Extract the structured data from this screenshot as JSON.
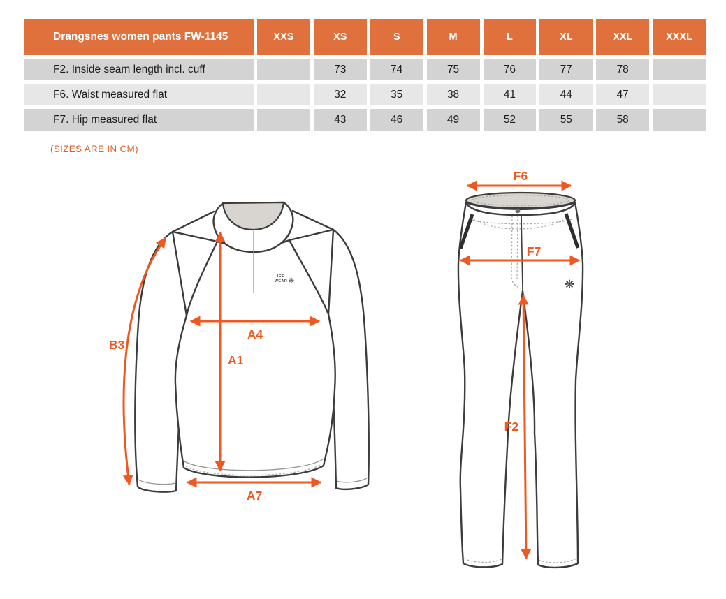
{
  "table": {
    "header": {
      "product": "Drangsnes women pants FW-1145",
      "sizes": [
        "XXS",
        "XS",
        "S",
        "M",
        "L",
        "XL",
        "XXL",
        "XXXL"
      ]
    },
    "rows": [
      {
        "label": "F2. Inside seam length incl. cuff",
        "values": [
          "",
          "73",
          "74",
          "75",
          "76",
          "77",
          "78",
          ""
        ]
      },
      {
        "label": "F6. Waist measured flat",
        "values": [
          "",
          "32",
          "35",
          "38",
          "41",
          "44",
          "47",
          ""
        ]
      },
      {
        "label": "F7. Hip measured flat",
        "values": [
          "",
          "43",
          "46",
          "49",
          "52",
          "55",
          "58",
          ""
        ]
      }
    ]
  },
  "note": "(SIZES ARE IN CM)",
  "diagrams": {
    "sweater": {
      "labels": {
        "b3": "B3",
        "a4": "A4",
        "a1": "A1",
        "a7": "A7"
      },
      "logo": {
        "line1": "ICE",
        "line2": "WEAR",
        "mark": "❋"
      }
    },
    "pants": {
      "labels": {
        "f6": "F6",
        "f7": "F7",
        "f2": "F2"
      },
      "logo_mark": "❋"
    }
  },
  "colors": {
    "header_bg": "#e0703c",
    "header_text": "#ffffff",
    "row_dark": "#d3d3d3",
    "row_light": "#e7e7e7",
    "table_text": "#1c1c1c",
    "note": "#e0602a",
    "arrow": "#f0581f",
    "line_art": "#3c3c3c",
    "stitch": "#aca7a2",
    "fabric_fill": "#ffffff",
    "opening_fill": "#d8d4d0"
  }
}
